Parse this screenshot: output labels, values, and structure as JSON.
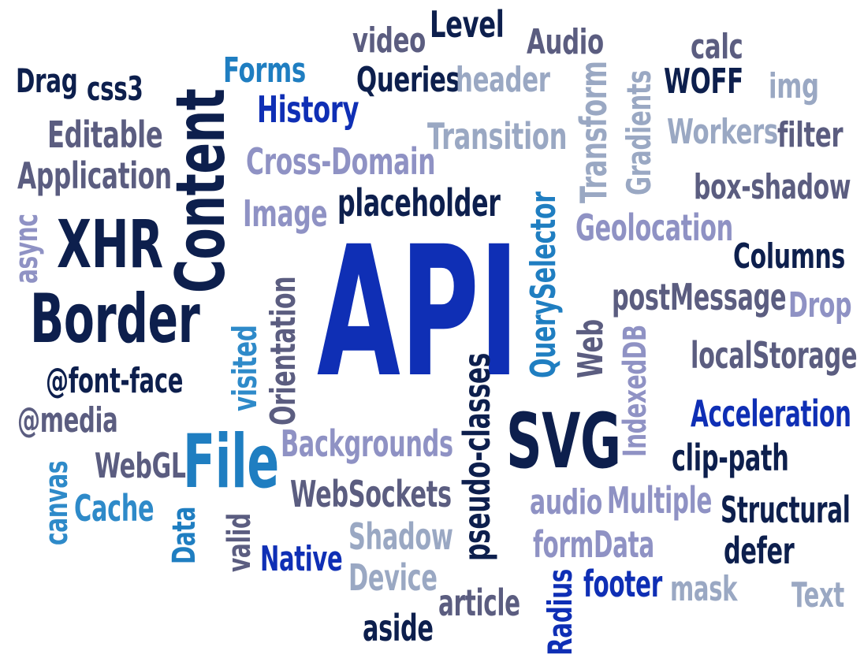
{
  "palette": {
    "navy": "#0d1f4d",
    "royal": "#0f2fb5",
    "teal": "#1f7ec1",
    "cyan": "#2e8ac9",
    "slate": "#5b5d80",
    "lavender": "#8f92c4",
    "steel": "#9aa8c3"
  },
  "words": [
    {
      "id": "api",
      "text": "API",
      "color": "royal"
    },
    {
      "id": "content",
      "text": "Content",
      "color": "navy"
    },
    {
      "id": "xhr",
      "text": "XHR",
      "color": "navy"
    },
    {
      "id": "border",
      "text": "Border",
      "color": "navy"
    },
    {
      "id": "svg",
      "text": "SVG",
      "color": "navy"
    },
    {
      "id": "file",
      "text": "File",
      "color": "teal"
    },
    {
      "id": "video",
      "text": "video",
      "color": "slate"
    },
    {
      "id": "level",
      "text": "Level",
      "color": "navy"
    },
    {
      "id": "audio-cap",
      "text": "Audio",
      "color": "slate"
    },
    {
      "id": "calc",
      "text": "calc",
      "color": "slate"
    },
    {
      "id": "drag",
      "text": "Drag",
      "color": "navy"
    },
    {
      "id": "css3",
      "text": "css3",
      "color": "navy"
    },
    {
      "id": "forms",
      "text": "Forms",
      "color": "teal"
    },
    {
      "id": "queries",
      "text": "Queries",
      "color": "navy"
    },
    {
      "id": "header",
      "text": "header",
      "color": "steel"
    },
    {
      "id": "woff",
      "text": "WOFF",
      "color": "navy"
    },
    {
      "id": "img",
      "text": "img",
      "color": "steel"
    },
    {
      "id": "history",
      "text": "History",
      "color": "royal"
    },
    {
      "id": "transform",
      "text": "Transform",
      "color": "steel"
    },
    {
      "id": "gradients",
      "text": "Gradients",
      "color": "steel"
    },
    {
      "id": "editable",
      "text": "Editable",
      "color": "slate"
    },
    {
      "id": "transition",
      "text": "Transition",
      "color": "steel"
    },
    {
      "id": "workers",
      "text": "Workers",
      "color": "steel"
    },
    {
      "id": "filter",
      "text": "filter",
      "color": "slate"
    },
    {
      "id": "application",
      "text": "Application",
      "color": "slate"
    },
    {
      "id": "cross-domain",
      "text": "Cross-Domain",
      "color": "lavender"
    },
    {
      "id": "box-shadow",
      "text": "box-shadow",
      "color": "slate"
    },
    {
      "id": "async",
      "text": "async",
      "color": "lavender"
    },
    {
      "id": "image",
      "text": "Image",
      "color": "lavender"
    },
    {
      "id": "placeholder",
      "text": "placeholder",
      "color": "navy"
    },
    {
      "id": "geolocation",
      "text": "Geolocation",
      "color": "lavender"
    },
    {
      "id": "columns",
      "text": "Columns",
      "color": "navy"
    },
    {
      "id": "queryselector",
      "text": "QuerySelector",
      "color": "teal"
    },
    {
      "id": "postmessage",
      "text": "postMessage",
      "color": "slate"
    },
    {
      "id": "drop",
      "text": "Drop",
      "color": "lavender"
    },
    {
      "id": "orientation",
      "text": "Orientation",
      "color": "slate"
    },
    {
      "id": "visited",
      "text": "visited",
      "color": "cyan"
    },
    {
      "id": "web",
      "text": "Web",
      "color": "slate"
    },
    {
      "id": "indexeddb",
      "text": "IndexedDB",
      "color": "lavender"
    },
    {
      "id": "localstorage",
      "text": "localStorage",
      "color": "slate"
    },
    {
      "id": "font-face",
      "text": "@font-face",
      "color": "navy"
    },
    {
      "id": "pseudo-classes",
      "text": "pseudo-classes",
      "color": "navy"
    },
    {
      "id": "media",
      "text": "@media",
      "color": "slate"
    },
    {
      "id": "acceleration",
      "text": "Acceleration",
      "color": "royal"
    },
    {
      "id": "backgrounds",
      "text": "Backgrounds",
      "color": "lavender"
    },
    {
      "id": "clip-path",
      "text": "clip-path",
      "color": "navy"
    },
    {
      "id": "canvas",
      "text": "canvas",
      "color": "cyan"
    },
    {
      "id": "webgl",
      "text": "WebGL",
      "color": "slate"
    },
    {
      "id": "cache",
      "text": "Cache",
      "color": "cyan"
    },
    {
      "id": "websockets",
      "text": "WebSockets",
      "color": "slate"
    },
    {
      "id": "audio",
      "text": "audio",
      "color": "lavender"
    },
    {
      "id": "multiple",
      "text": "Multiple",
      "color": "lavender"
    },
    {
      "id": "structural",
      "text": "Structural",
      "color": "navy"
    },
    {
      "id": "data",
      "text": "Data",
      "color": "teal"
    },
    {
      "id": "valid",
      "text": "valid",
      "color": "slate"
    },
    {
      "id": "shadow",
      "text": "Shadow",
      "color": "steel"
    },
    {
      "id": "formdata",
      "text": "formData",
      "color": "lavender"
    },
    {
      "id": "defer",
      "text": "defer",
      "color": "navy"
    },
    {
      "id": "native",
      "text": "Native",
      "color": "royal"
    },
    {
      "id": "device",
      "text": "Device",
      "color": "steel"
    },
    {
      "id": "radius",
      "text": "Radius",
      "color": "royal"
    },
    {
      "id": "footer",
      "text": "footer",
      "color": "royal"
    },
    {
      "id": "mask",
      "text": "mask",
      "color": "steel"
    },
    {
      "id": "text",
      "text": "Text",
      "color": "steel"
    },
    {
      "id": "article",
      "text": "article",
      "color": "slate"
    },
    {
      "id": "aside",
      "text": "aside",
      "color": "navy"
    }
  ]
}
